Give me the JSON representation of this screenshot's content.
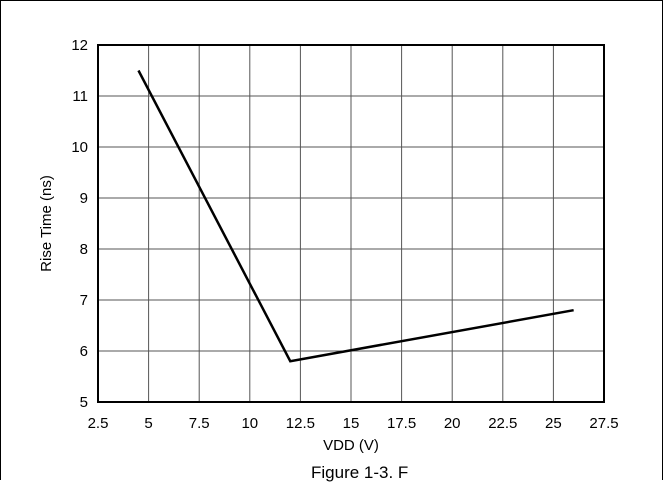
{
  "chart_data": {
    "type": "line",
    "title": "",
    "xlabel": "VDD (V)",
    "ylabel": "Rise Time (ns)",
    "xlim": [
      2.5,
      27.5
    ],
    "ylim": [
      5,
      12
    ],
    "xticks": [
      2.5,
      5,
      7.5,
      10,
      12.5,
      15,
      17.5,
      20,
      22.5,
      25,
      27.5
    ],
    "xtick_labels": [
      "2.5",
      "5",
      "7.5",
      "10",
      "12.5",
      "15",
      "17.5",
      "20",
      "22.5",
      "25",
      "27.5"
    ],
    "yticks": [
      5,
      6,
      7,
      8,
      9,
      10,
      11,
      12
    ],
    "ytick_labels": [
      "5",
      "6",
      "7",
      "8",
      "9",
      "10",
      "11",
      "12"
    ],
    "grid": true,
    "legend": "none",
    "line_color": "#000000",
    "series": [
      {
        "x": [
          4.5,
          12.0,
          26.0
        ],
        "y": [
          11.5,
          5.8,
          6.8
        ]
      }
    ]
  },
  "caption_partial": "Figure 1-3. F"
}
